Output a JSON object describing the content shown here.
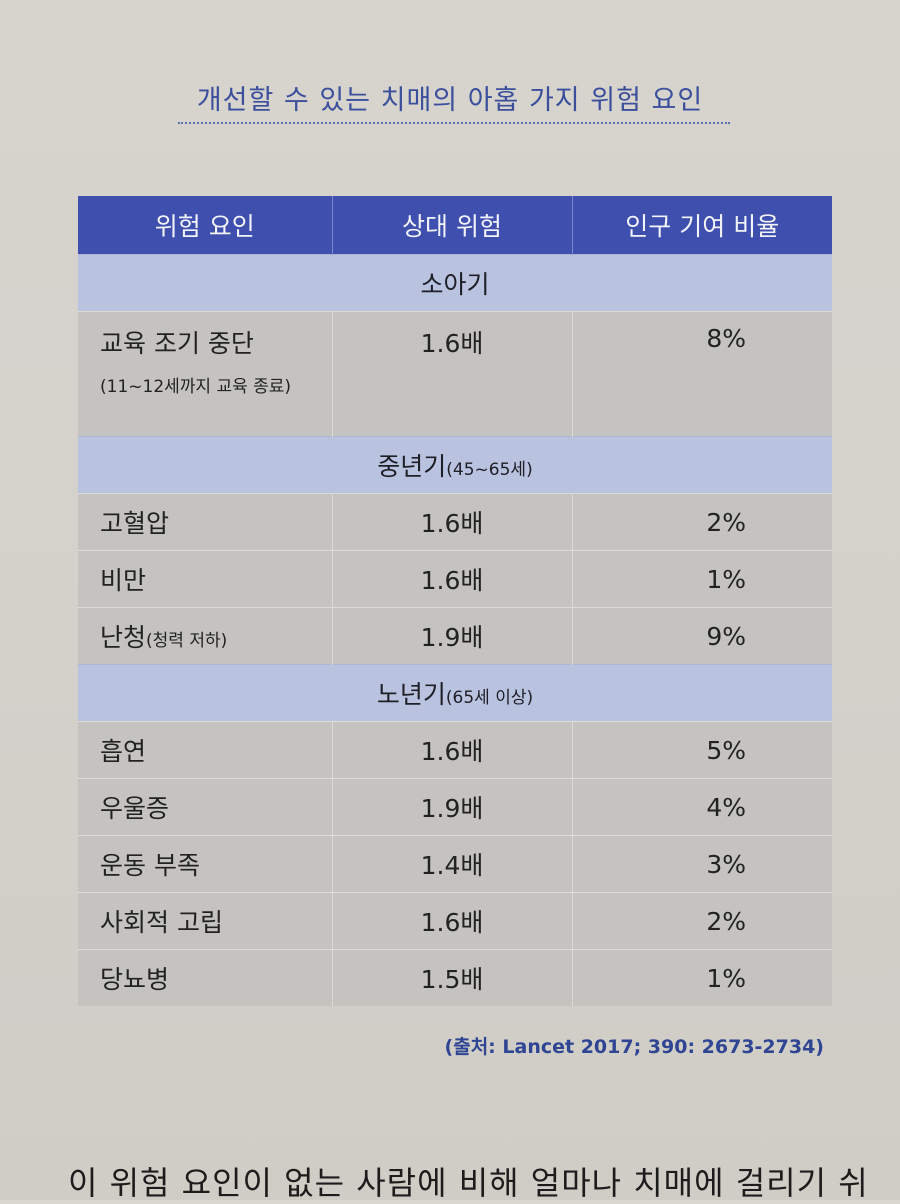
{
  "title": "개선할 수 있는 치매의 아홉 가지 위험 요인",
  "header": {
    "col1": "위험 요인",
    "col2": "상대 위험",
    "col3": "인구 기여 비율"
  },
  "sections": [
    {
      "label": "소아기",
      "note": "",
      "rows": [
        {
          "factor": "교육 조기 중단",
          "note": "(11~12세까지 교육 종료)",
          "risk": "1.6배",
          "ratio": "8%"
        }
      ]
    },
    {
      "label": "중년기",
      "note": "(45~65세)",
      "rows": [
        {
          "factor": "고혈압",
          "note": "",
          "risk": "1.6배",
          "ratio": "2%"
        },
        {
          "factor": "비만",
          "note": "",
          "risk": "1.6배",
          "ratio": "1%"
        },
        {
          "factor": "난청",
          "note": "(청력 저하)",
          "risk": "1.9배",
          "ratio": "9%"
        }
      ]
    },
    {
      "label": "노년기",
      "note": "(65세 이상)",
      "rows": [
        {
          "factor": "흡연",
          "note": "",
          "risk": "1.6배",
          "ratio": "5%"
        },
        {
          "factor": "우울증",
          "note": "",
          "risk": "1.9배",
          "ratio": "4%"
        },
        {
          "factor": "운동 부족",
          "note": "",
          "risk": "1.4배",
          "ratio": "3%"
        },
        {
          "factor": "사회적 고립",
          "note": "",
          "risk": "1.6배",
          "ratio": "2%"
        },
        {
          "factor": "당뇨병",
          "note": "",
          "risk": "1.5배",
          "ratio": "1%"
        }
      ]
    }
  ],
  "source": "(출처: Lancet 2017; 390: 2673-2734)",
  "body_text": "이 위험 요인이 없는 사람에 비해 얼마나 치매에 걸리기 쉬"
}
